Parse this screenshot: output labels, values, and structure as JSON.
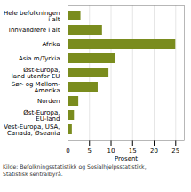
{
  "chart_data": {
    "type": "bar",
    "orientation": "horizontal",
    "categories": [
      "Hele befolkningen\ni alt",
      "Innvandrere i alt",
      "Afrika",
      "Asia m/Tyrkia",
      "Øst-Europa,\nland utenfor EU",
      "Sør- og Mellom-\nAmerika",
      "Norden",
      "Øst-Europa,\nEU-land",
      "Vest-Europa, USA,\nCanada, Øseania"
    ],
    "values": [
      3.0,
      8.0,
      25.0,
      11.0,
      9.5,
      7.0,
      2.5,
      1.5,
      1.0
    ],
    "color": "#7a8c1e",
    "xlabel": "Prosent",
    "xlim": [
      0,
      27
    ],
    "xticks": [
      0,
      5,
      10,
      15,
      20,
      25
    ],
    "grid": true,
    "caption": "Kilde: Befolkningsstatistikk og Sosialhjelpsstatistikk,\nStatistisk sentralbyrå."
  }
}
